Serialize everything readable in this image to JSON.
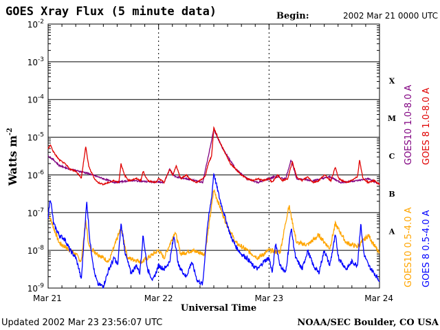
{
  "chart_data": {
    "type": "line",
    "title": "GOES Xray Flux (5 minute data)",
    "begin_label": "Begin:",
    "begin_value": "2002 Mar 21 0000 UTC",
    "xlabel": "Universal Time",
    "ylabel": "Watts m",
    "ylabel_sup": "-2",
    "yscale": "log",
    "ylim": [
      1e-09,
      0.01
    ],
    "y_ticks": [
      {
        "base": "10",
        "exp": "-2",
        "v": -2
      },
      {
        "base": "10",
        "exp": "-3",
        "v": -3
      },
      {
        "base": "10",
        "exp": "-4",
        "v": -4
      },
      {
        "base": "10",
        "exp": "-5",
        "v": -5
      },
      {
        "base": "10",
        "exp": "-6",
        "v": -6
      },
      {
        "base": "10",
        "exp": "-7",
        "v": -7
      },
      {
        "base": "10",
        "exp": "-8",
        "v": -8
      },
      {
        "base": "10",
        "exp": "-9",
        "v": -9
      }
    ],
    "x_ticks": [
      "Mar 21",
      "Mar 22",
      "Mar 23",
      "Mar 24"
    ],
    "xlim_days": [
      0,
      3
    ],
    "flare_classes": [
      {
        "label": "X",
        "v": -3.5
      },
      {
        "label": "M",
        "v": -4.5
      },
      {
        "label": "C",
        "v": -5.5
      },
      {
        "label": "B",
        "v": -6.5
      },
      {
        "label": "A",
        "v": -7.5
      }
    ],
    "colors": {
      "goes10_long": "#800080",
      "goes8_long": "#e00000",
      "goes10_short": "#ffa500",
      "goes8_short": "#0000ff"
    },
    "series": [
      {
        "name": "GOES10 1.0-8.0 A",
        "color": "#800080",
        "points": [
          [
            0.0,
            -5.5
          ],
          [
            0.05,
            -5.6
          ],
          [
            0.1,
            -5.75
          ],
          [
            0.2,
            -5.85
          ],
          [
            0.35,
            -5.95
          ],
          [
            0.45,
            -6.05
          ],
          [
            0.6,
            -6.2
          ],
          [
            0.75,
            -6.15
          ],
          [
            0.9,
            -6.18
          ],
          [
            1.05,
            -6.2
          ],
          [
            1.1,
            -5.85
          ],
          [
            1.15,
            -6.05
          ],
          [
            1.25,
            -6.1
          ],
          [
            1.4,
            -6.2
          ],
          [
            1.5,
            -4.8
          ],
          [
            1.58,
            -5.3
          ],
          [
            1.7,
            -5.85
          ],
          [
            1.8,
            -6.1
          ],
          [
            1.9,
            -6.2
          ],
          [
            2.05,
            -6.05
          ],
          [
            2.15,
            -6.1
          ],
          [
            2.2,
            -5.6
          ],
          [
            2.25,
            -6.1
          ],
          [
            2.4,
            -6.15
          ],
          [
            2.55,
            -6.05
          ],
          [
            2.65,
            -6.2
          ],
          [
            2.8,
            -6.15
          ],
          [
            2.9,
            -6.1
          ],
          [
            3.0,
            -6.25
          ]
        ]
      },
      {
        "name": "GOES 8 1.0-8.0 A",
        "color": "#e00000",
        "points": [
          [
            0.0,
            -5.3
          ],
          [
            0.02,
            -5.2
          ],
          [
            0.05,
            -5.4
          ],
          [
            0.1,
            -5.6
          ],
          [
            0.15,
            -5.7
          ],
          [
            0.2,
            -5.85
          ],
          [
            0.25,
            -5.9
          ],
          [
            0.28,
            -6.0
          ],
          [
            0.3,
            -6.1
          ],
          [
            0.34,
            -5.25
          ],
          [
            0.37,
            -5.8
          ],
          [
            0.42,
            -6.1
          ],
          [
            0.45,
            -6.2
          ],
          [
            0.5,
            -6.25
          ],
          [
            0.55,
            -6.2
          ],
          [
            0.6,
            -6.15
          ],
          [
            0.64,
            -6.2
          ],
          [
            0.66,
            -5.7
          ],
          [
            0.69,
            -6.0
          ],
          [
            0.73,
            -6.15
          ],
          [
            0.8,
            -6.1
          ],
          [
            0.84,
            -6.15
          ],
          [
            0.86,
            -5.9
          ],
          [
            0.9,
            -6.15
          ],
          [
            0.98,
            -6.2
          ],
          [
            1.0,
            -6.1
          ],
          [
            1.05,
            -6.2
          ],
          [
            1.1,
            -5.85
          ],
          [
            1.13,
            -6.0
          ],
          [
            1.16,
            -5.75
          ],
          [
            1.2,
            -6.1
          ],
          [
            1.25,
            -6.0
          ],
          [
            1.3,
            -6.15
          ],
          [
            1.35,
            -6.2
          ],
          [
            1.42,
            -6.05
          ],
          [
            1.45,
            -5.7
          ],
          [
            1.48,
            -5.5
          ],
          [
            1.5,
            -4.75
          ],
          [
            1.55,
            -5.1
          ],
          [
            1.6,
            -5.4
          ],
          [
            1.65,
            -5.7
          ],
          [
            1.7,
            -5.85
          ],
          [
            1.75,
            -6.0
          ],
          [
            1.8,
            -6.1
          ],
          [
            1.85,
            -6.15
          ],
          [
            1.9,
            -6.1
          ],
          [
            1.94,
            -6.15
          ],
          [
            2.0,
            -6.1
          ],
          [
            2.03,
            -6.2
          ],
          [
            2.08,
            -6.0
          ],
          [
            2.12,
            -6.15
          ],
          [
            2.17,
            -6.1
          ],
          [
            2.21,
            -5.65
          ],
          [
            2.25,
            -6.05
          ],
          [
            2.3,
            -6.15
          ],
          [
            2.35,
            -6.05
          ],
          [
            2.4,
            -6.2
          ],
          [
            2.45,
            -6.15
          ],
          [
            2.5,
            -6.0
          ],
          [
            2.56,
            -6.15
          ],
          [
            2.6,
            -5.8
          ],
          [
            2.63,
            -6.1
          ],
          [
            2.7,
            -6.2
          ],
          [
            2.75,
            -6.15
          ],
          [
            2.8,
            -6.05
          ],
          [
            2.82,
            -5.6
          ],
          [
            2.85,
            -6.1
          ],
          [
            2.9,
            -6.2
          ],
          [
            2.95,
            -6.15
          ],
          [
            3.0,
            -6.25
          ]
        ]
      },
      {
        "name": "GOES10 0.5-4.0 A",
        "color": "#ffa500",
        "points": [
          [
            0.0,
            -7.0
          ],
          [
            0.05,
            -7.4
          ],
          [
            0.1,
            -7.8
          ],
          [
            0.2,
            -8.0
          ],
          [
            0.25,
            -8.1
          ],
          [
            0.3,
            -8.3
          ],
          [
            0.34,
            -7.2
          ],
          [
            0.37,
            -7.9
          ],
          [
            0.45,
            -8.1
          ],
          [
            0.55,
            -8.3
          ],
          [
            0.66,
            -7.4
          ],
          [
            0.72,
            -8.2
          ],
          [
            0.85,
            -8.3
          ],
          [
            1.0,
            -8.0
          ],
          [
            1.05,
            -8.2
          ],
          [
            1.15,
            -7.5
          ],
          [
            1.2,
            -8.1
          ],
          [
            1.3,
            -8.0
          ],
          [
            1.42,
            -8.1
          ],
          [
            1.5,
            -6.4
          ],
          [
            1.6,
            -7.2
          ],
          [
            1.7,
            -7.8
          ],
          [
            1.8,
            -8.0
          ],
          [
            1.9,
            -8.2
          ],
          [
            2.0,
            -8.0
          ],
          [
            2.1,
            -8.05
          ],
          [
            2.18,
            -6.8
          ],
          [
            2.25,
            -7.8
          ],
          [
            2.35,
            -7.85
          ],
          [
            2.45,
            -7.6
          ],
          [
            2.55,
            -7.95
          ],
          [
            2.6,
            -7.3
          ],
          [
            2.7,
            -7.8
          ],
          [
            2.8,
            -7.9
          ],
          [
            2.9,
            -7.6
          ],
          [
            3.0,
            -8.1
          ]
        ]
      },
      {
        "name": "GOES 8 0.5-4.0 A",
        "color": "#0000ff",
        "points": [
          [
            0.0,
            -7.1
          ],
          [
            0.02,
            -6.6
          ],
          [
            0.05,
            -7.3
          ],
          [
            0.1,
            -7.6
          ],
          [
            0.15,
            -7.7
          ],
          [
            0.2,
            -8.0
          ],
          [
            0.25,
            -8.2
          ],
          [
            0.28,
            -8.5
          ],
          [
            0.3,
            -8.8
          ],
          [
            0.33,
            -7.5
          ],
          [
            0.35,
            -6.7
          ],
          [
            0.38,
            -7.8
          ],
          [
            0.42,
            -8.6
          ],
          [
            0.45,
            -8.9
          ],
          [
            0.5,
            -8.95
          ],
          [
            0.55,
            -8.5
          ],
          [
            0.6,
            -8.2
          ],
          [
            0.63,
            -8.4
          ],
          [
            0.66,
            -7.3
          ],
          [
            0.7,
            -8.1
          ],
          [
            0.75,
            -8.6
          ],
          [
            0.8,
            -8.4
          ],
          [
            0.83,
            -8.6
          ],
          [
            0.86,
            -7.6
          ],
          [
            0.9,
            -8.5
          ],
          [
            0.95,
            -8.8
          ],
          [
            1.0,
            -8.4
          ],
          [
            1.05,
            -8.5
          ],
          [
            1.1,
            -8.3
          ],
          [
            1.14,
            -7.6
          ],
          [
            1.18,
            -8.4
          ],
          [
            1.25,
            -8.7
          ],
          [
            1.3,
            -8.3
          ],
          [
            1.35,
            -8.8
          ],
          [
            1.4,
            -8.9
          ],
          [
            1.44,
            -7.4
          ],
          [
            1.48,
            -6.6
          ],
          [
            1.5,
            -5.95
          ],
          [
            1.55,
            -6.6
          ],
          [
            1.6,
            -7.1
          ],
          [
            1.65,
            -7.6
          ],
          [
            1.7,
            -7.9
          ],
          [
            1.75,
            -8.1
          ],
          [
            1.8,
            -8.2
          ],
          [
            1.85,
            -8.4
          ],
          [
            1.9,
            -8.5
          ],
          [
            1.95,
            -8.3
          ],
          [
            2.0,
            -8.2
          ],
          [
            2.03,
            -8.6
          ],
          [
            2.06,
            -7.8
          ],
          [
            2.1,
            -8.4
          ],
          [
            2.15,
            -8.6
          ],
          [
            2.2,
            -7.4
          ],
          [
            2.24,
            -8.2
          ],
          [
            2.3,
            -8.5
          ],
          [
            2.35,
            -8.0
          ],
          [
            2.4,
            -8.4
          ],
          [
            2.45,
            -8.6
          ],
          [
            2.5,
            -8.0
          ],
          [
            2.55,
            -8.4
          ],
          [
            2.6,
            -7.6
          ],
          [
            2.63,
            -8.2
          ],
          [
            2.7,
            -8.5
          ],
          [
            2.75,
            -8.3
          ],
          [
            2.8,
            -8.4
          ],
          [
            2.83,
            -7.3
          ],
          [
            2.86,
            -8.1
          ],
          [
            2.9,
            -8.4
          ],
          [
            2.95,
            -8.6
          ],
          [
            3.0,
            -8.8
          ]
        ]
      }
    ]
  },
  "footer": {
    "updated_label": "Updated",
    "updated_value": "2002 Mar 23 23:56:07 UTC",
    "source": "NOAA/SEC Boulder, CO USA"
  }
}
